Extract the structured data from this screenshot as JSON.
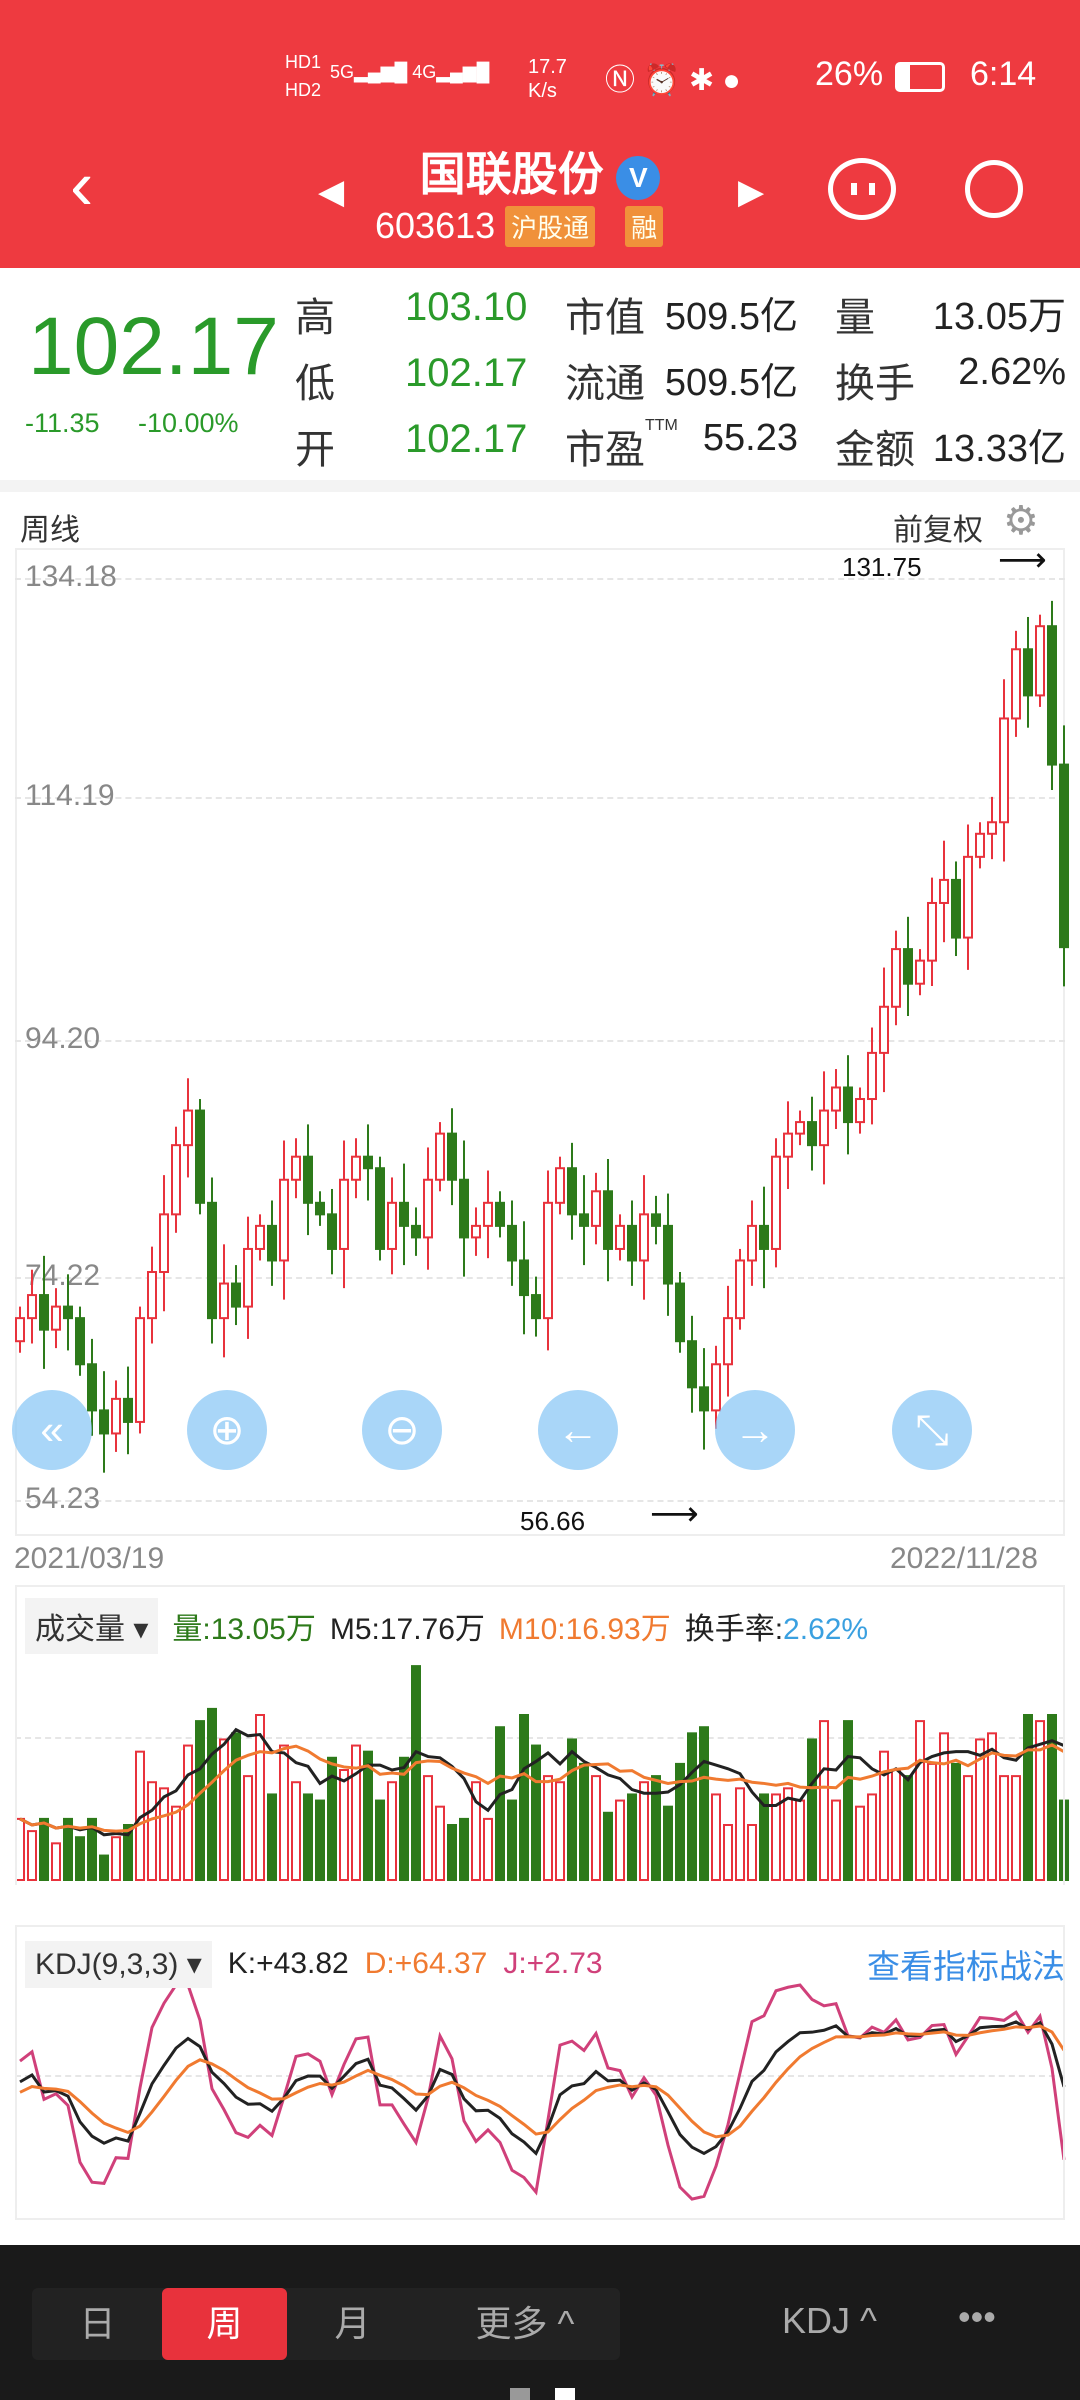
{
  "status": {
    "network_speed": "17.7 K/s",
    "battery": "26%",
    "time": "6:14",
    "sims": [
      "HD1",
      "HD2"
    ],
    "signals": [
      "5G",
      "4G"
    ]
  },
  "header": {
    "title": "国联股份",
    "verified": "V",
    "code": "603613",
    "badges": [
      "沪股通",
      "融"
    ]
  },
  "quote": {
    "price": "102.17",
    "change": "-11.35",
    "change_pct": "-10.00%",
    "rows": [
      {
        "l1": "高",
        "v1": "103.10",
        "l2": "市值",
        "v2": "509.5亿",
        "l3": "量",
        "v3": "13.05万"
      },
      {
        "l1": "低",
        "v1": "102.17",
        "l2": "流通",
        "v2": "509.5亿",
        "l3": "换手",
        "v3": "2.62%"
      },
      {
        "l1": "开",
        "v1": "102.17",
        "l2": "市盈TTM",
        "v2": "55.23",
        "l3": "金额",
        "v3": "13.33亿"
      }
    ]
  },
  "chart": {
    "period_label": "周线",
    "adjust_label": "前复权",
    "price_ticks": [
      "134.18",
      "114.19",
      "94.20",
      "74.22",
      "54.23"
    ],
    "max_label": "131.75",
    "min_label": "56.66",
    "start_date": "2021/03/19",
    "end_date": "2022/11/28",
    "closes": [
      70,
      72,
      69,
      71,
      70,
      66,
      62,
      60,
      63,
      61,
      70,
      74,
      79,
      85,
      88,
      80,
      70,
      73,
      71,
      76,
      78,
      75,
      82,
      84,
      80,
      79,
      76,
      82,
      84,
      83,
      76,
      80,
      78,
      77,
      82,
      86,
      82,
      77,
      78,
      80,
      78,
      75,
      72,
      70,
      80,
      83,
      79,
      78,
      81,
      76,
      78,
      75,
      79,
      78,
      73,
      68,
      64,
      62,
      66,
      70,
      75,
      78,
      76,
      84,
      86,
      87,
      85,
      88,
      90,
      87,
      89,
      93,
      97,
      102,
      99,
      101,
      106,
      108,
      103,
      110,
      112,
      113,
      122,
      128,
      124,
      130,
      118,
      102.17
    ],
    "volumes": [
      10,
      8,
      10,
      6,
      10,
      7,
      10,
      4,
      7,
      9,
      21,
      16,
      15,
      12,
      22,
      26,
      28,
      23,
      24,
      17,
      27,
      14,
      22,
      16,
      14,
      13,
      20,
      18,
      22,
      21,
      13,
      16,
      20,
      35,
      17,
      12,
      9,
      10,
      16,
      10,
      25,
      13,
      27,
      22,
      17,
      16,
      23,
      19,
      17,
      11,
      13,
      14,
      16,
      17,
      12,
      19,
      24,
      25,
      14,
      9,
      15,
      9,
      14,
      14,
      15,
      13,
      23,
      26,
      13,
      26,
      12,
      14,
      21,
      18,
      17,
      26,
      19,
      24,
      19,
      17,
      23,
      24,
      17,
      17,
      27,
      26,
      27,
      13
    ]
  },
  "volume_panel": {
    "selector": "成交量",
    "vol": "量:13.05万",
    "m5": "M5:17.76万",
    "m10": "M10:16.93万",
    "turnover_label": "换手率:",
    "turnover": "2.62%"
  },
  "kdj_panel": {
    "selector": "KDJ(9,3,3)",
    "k": "K:+43.82",
    "d": "D:+64.37",
    "j": "J:+2.73",
    "link": "查看指标战法"
  },
  "bottom": {
    "tabs": [
      "日",
      "周",
      "月",
      "更多 ^"
    ],
    "active": "周",
    "indicator": "KDJ ^",
    "more": "•••"
  },
  "colors": {
    "up": "#e8323c",
    "down": "#2d7a1a",
    "header": "#ee3a40",
    "accent_blue": "#3a8ee6"
  }
}
